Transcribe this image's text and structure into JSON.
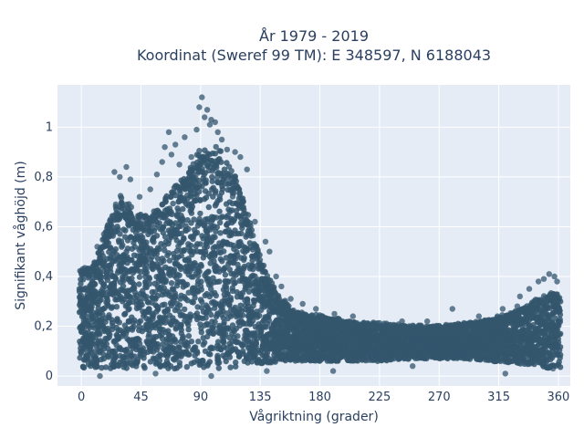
{
  "chart_data": {
    "type": "scatter",
    "title_lines": [
      "År 1979 - 2019",
      "Koordinat (Sweref 99 TM): E 348597, N 6188043"
    ],
    "xlabel": "Vågriktning (grader)",
    "ylabel": "Signifikant våghöjd (m)",
    "xlim": [
      -18,
      369
    ],
    "ylim": [
      -0.04,
      1.17
    ],
    "x_ticks": [
      0,
      45,
      90,
      135,
      180,
      225,
      270,
      315,
      360
    ],
    "x_tick_labels": [
      "0",
      "45",
      "90",
      "135",
      "180",
      "225",
      "270",
      "315",
      "360"
    ],
    "y_ticks": [
      0,
      0.2,
      0.4,
      0.6,
      0.8,
      1
    ],
    "y_tick_labels": [
      "0",
      "0,2",
      "0,4",
      "0,6",
      "0,8",
      "1"
    ],
    "grid": true,
    "marker_color": "#34566d",
    "plot_bg": "#e5ecf6",
    "envelope": {
      "x": [
        0,
        10,
        20,
        30,
        40,
        50,
        60,
        70,
        80,
        90,
        100,
        110,
        120,
        130,
        140,
        150,
        160,
        180,
        200,
        225,
        250,
        270,
        290,
        310,
        330,
        345,
        355,
        360
      ],
      "y_max": [
        0.42,
        0.46,
        0.62,
        0.72,
        0.66,
        0.64,
        0.7,
        0.76,
        0.82,
        0.9,
        0.92,
        0.86,
        0.76,
        0.56,
        0.4,
        0.32,
        0.26,
        0.24,
        0.22,
        0.21,
        0.2,
        0.2,
        0.21,
        0.23,
        0.26,
        0.31,
        0.33,
        0.33
      ],
      "y_min": [
        0.03,
        0.03,
        0.03,
        0.03,
        0.03,
        0.03,
        0.03,
        0.03,
        0.03,
        0.03,
        0.03,
        0.03,
        0.04,
        0.05,
        0.05,
        0.06,
        0.06,
        0.06,
        0.06,
        0.06,
        0.07,
        0.07,
        0.07,
        0.06,
        0.05,
        0.04,
        0.03,
        0.03
      ]
    },
    "outliers": [
      [
        1,
        0.43
      ],
      [
        3,
        0.41
      ],
      [
        12,
        0.52
      ],
      [
        17,
        0.57
      ],
      [
        22,
        0.63
      ],
      [
        26,
        0.69
      ],
      [
        25,
        0.82
      ],
      [
        29,
        0.8
      ],
      [
        34,
        0.84
      ],
      [
        37,
        0.79
      ],
      [
        44,
        0.72
      ],
      [
        52,
        0.75
      ],
      [
        57,
        0.81
      ],
      [
        61,
        0.86
      ],
      [
        63,
        0.92
      ],
      [
        66,
        0.98
      ],
      [
        68,
        0.89
      ],
      [
        71,
        0.93
      ],
      [
        74,
        0.85
      ],
      [
        78,
        0.96
      ],
      [
        83,
        0.88
      ],
      [
        87,
        0.99
      ],
      [
        89,
        1.08
      ],
      [
        91,
        1.12
      ],
      [
        93,
        1.04
      ],
      [
        95,
        1.07
      ],
      [
        97,
        1.01
      ],
      [
        98,
        1.03
      ],
      [
        101,
        1.02
      ],
      [
        103,
        0.98
      ],
      [
        106,
        0.95
      ],
      [
        110,
        0.91
      ],
      [
        116,
        0.9
      ],
      [
        120,
        0.88
      ],
      [
        125,
        0.83
      ],
      [
        131,
        0.62
      ],
      [
        139,
        0.54
      ],
      [
        142,
        0.5
      ],
      [
        147,
        0.4
      ],
      [
        151,
        0.36
      ],
      [
        158,
        0.31
      ],
      [
        167,
        0.29
      ],
      [
        177,
        0.27
      ],
      [
        191,
        0.25
      ],
      [
        205,
        0.24
      ],
      [
        242,
        0.22
      ],
      [
        261,
        0.22
      ],
      [
        280,
        0.27
      ],
      [
        300,
        0.24
      ],
      [
        318,
        0.27
      ],
      [
        329,
        0.28
      ],
      [
        331,
        0.32
      ],
      [
        338,
        0.35
      ],
      [
        345,
        0.38
      ],
      [
        349,
        0.39
      ],
      [
        353,
        0.41
      ],
      [
        357,
        0.4
      ],
      [
        359,
        0.38
      ],
      [
        14,
        0.0
      ],
      [
        56,
        0.01
      ],
      [
        98,
        0.0
      ],
      [
        140,
        0.02
      ],
      [
        190,
        0.02
      ],
      [
        250,
        0.04
      ],
      [
        320,
        0.01
      ],
      [
        356,
        0.03
      ]
    ]
  }
}
